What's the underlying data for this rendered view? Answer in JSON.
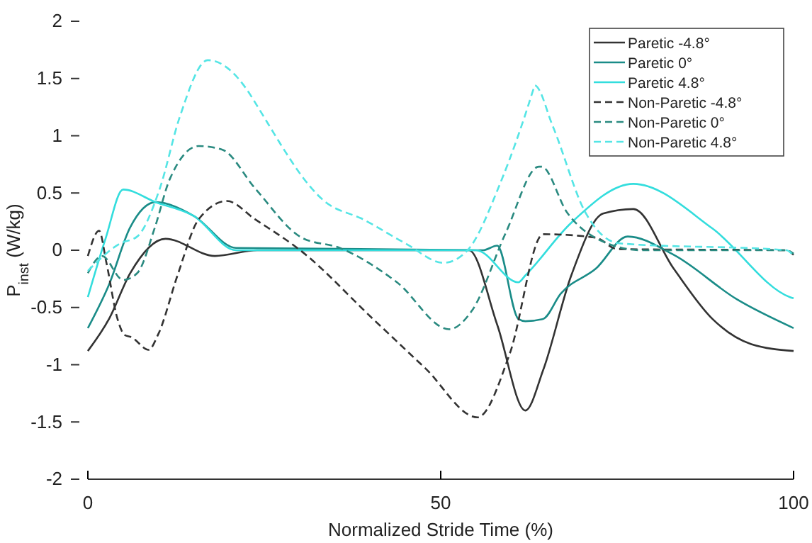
{
  "chart_data": {
    "type": "line",
    "xlabel": "Normalized Stride Time (%)",
    "ylabel": "P$_{inst}$ (W/kg)",
    "xlim": [
      0,
      100
    ],
    "xticks": [
      0,
      50,
      100
    ],
    "ylim": [
      -2,
      2
    ],
    "yticks": [
      -2,
      -1.5,
      -1,
      -0.5,
      0,
      0.5,
      1,
      1.5,
      2
    ],
    "grid": false,
    "legend": "top right",
    "marker": "none",
    "series": [
      {
        "name": "Paretic -4.8°",
        "color": "#333333",
        "line_style": "solid",
        "x": [
          0,
          3,
          6,
          11,
          18,
          24,
          54,
          58,
          62,
          64.5,
          68.5,
          73,
          77.3,
          83,
          88.5,
          94,
          100
        ],
        "values": [
          -0.88,
          -0.6,
          -0.2,
          0.1,
          -0.05,
          0,
          0,
          -0.65,
          -1.4,
          -1.05,
          -0.22,
          0.32,
          0.36,
          -0.16,
          -0.6,
          -0.82,
          -0.88
        ]
      },
      {
        "name": "Paretic 0°",
        "color": "#1a8c88",
        "line_style": "solid",
        "x": [
          0,
          3,
          6,
          9.6,
          15,
          21,
          56,
          58,
          61,
          62,
          64.5,
          67,
          72,
          76.5,
          83,
          92,
          100
        ],
        "values": [
          -0.68,
          -0.3,
          0.2,
          0.42,
          0.3,
          0.02,
          0,
          0.04,
          -0.6,
          -0.62,
          -0.6,
          -0.38,
          -0.16,
          0.12,
          -0.04,
          -0.43,
          -0.68
        ]
      },
      {
        "name": "Paretic 4.8°",
        "color": "#33dddd",
        "line_style": "solid",
        "x": [
          0,
          2.5,
          5,
          9.6,
          15,
          21,
          55,
          61,
          62,
          68.5,
          77.3,
          88.5,
          99.5,
          100
        ],
        "values": [
          -0.41,
          0.1,
          0.53,
          0.42,
          0.3,
          0,
          0,
          -0.28,
          -0.22,
          0.24,
          0.58,
          0.19,
          -0.41,
          -0.42
        ]
      },
      {
        "name": "Non-Paretic -4.8°",
        "color": "#333333",
        "line_style": "dashed",
        "x": [
          0,
          1.6,
          2.6,
          4.2,
          5.2,
          6.2,
          8.6,
          10,
          12.7,
          15.7,
          19.7,
          23.7,
          30.3,
          40.4,
          47.8,
          55.2,
          59.8,
          64.5,
          72,
          75,
          99,
          100
        ],
        "values": [
          -0.05,
          0.17,
          -0.1,
          -0.6,
          -0.74,
          -0.76,
          -0.87,
          -0.73,
          -0.22,
          0.27,
          0.43,
          0.27,
          -0.01,
          -0.6,
          -1.03,
          -1.46,
          -0.9,
          0.14,
          0.11,
          0.01,
          0,
          -0.04
        ]
      },
      {
        "name": "Non-Paretic 0°",
        "color": "#2a8a80",
        "line_style": "dashed",
        "x": [
          0,
          2,
          5,
          7,
          9.5,
          11.6,
          15.7,
          19,
          23.7,
          30.3,
          35.7,
          43.8,
          51.2,
          54.4,
          59.2,
          63.9,
          64.3,
          67.9,
          72.5,
          78.5,
          99,
          100
        ],
        "values": [
          -0.2,
          -0.05,
          -0.26,
          -0.2,
          0.2,
          0.62,
          0.91,
          0.88,
          0.54,
          0.11,
          0.02,
          -0.28,
          -0.69,
          -0.53,
          0.15,
          0.73,
          0.73,
          0.33,
          0.09,
          0,
          0,
          -0.03
        ]
      },
      {
        "name": "Non-Paretic 4.8°",
        "color": "#55e5e5",
        "line_style": "dashed",
        "x": [
          0,
          4.6,
          7,
          10.2,
          13,
          17,
          23,
          23.7,
          33.7,
          39,
          45,
          50.4,
          53.8,
          58.4,
          63.2,
          63.3,
          65.9,
          70.5,
          75.3,
          99,
          100
        ],
        "values": [
          -0.18,
          0.06,
          0.12,
          0.54,
          1.16,
          1.66,
          1.36,
          1.29,
          0.42,
          0.27,
          0.06,
          -0.11,
          0,
          0.58,
          1.42,
          1.44,
          1.08,
          0.33,
          0.06,
          0,
          -0.05
        ]
      }
    ]
  }
}
